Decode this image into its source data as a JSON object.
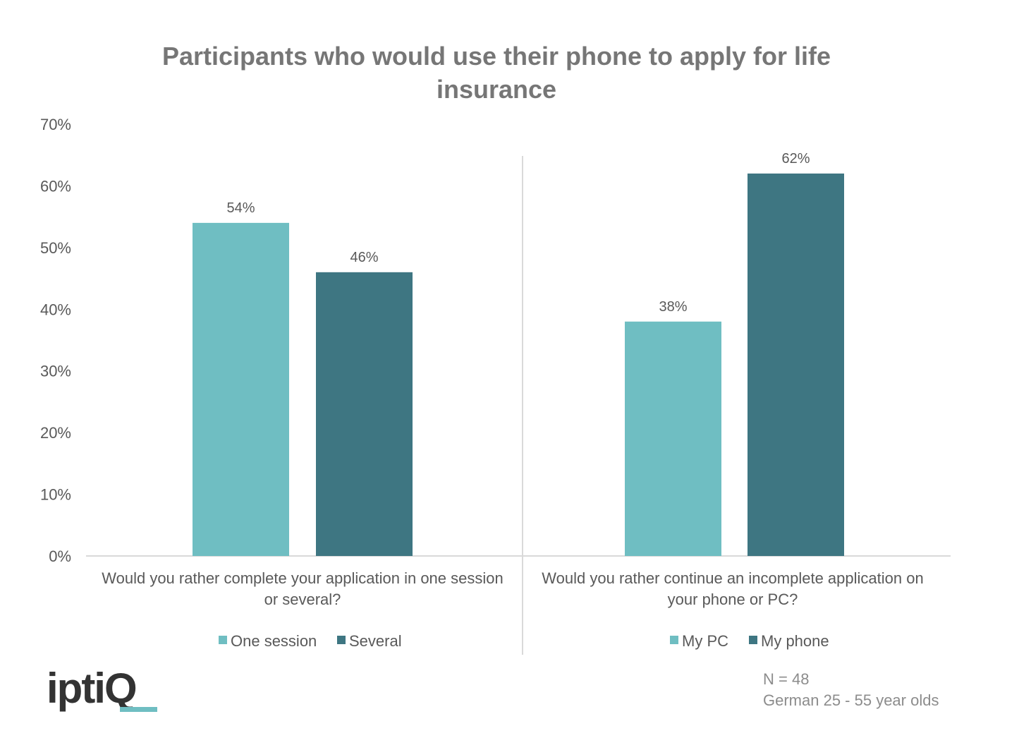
{
  "title": [
    "Participants who would use their phone to apply for life",
    "insurance"
  ],
  "colors": {
    "light": "#6fbec2",
    "dark": "#3e7682",
    "axis": "#d9d9d9",
    "logo_bar": "#6fbec2"
  },
  "chart_data": {
    "type": "bar",
    "ylim": [
      0,
      70
    ],
    "yticks": [
      "0%",
      "10%",
      "20%",
      "30%",
      "40%",
      "50%",
      "60%",
      "70%"
    ],
    "grid": false,
    "groups": [
      {
        "question": [
          "Would you rather complete your application in one session",
          "or several?"
        ],
        "series": [
          {
            "name": "One session",
            "value": 54,
            "label": "54%",
            "color": "#6fbec2"
          },
          {
            "name": "Several",
            "value": 46,
            "label": "46%",
            "color": "#3e7682"
          }
        ]
      },
      {
        "question": [
          "Would you rather continue an incomplete application on",
          "your phone or PC?"
        ],
        "series": [
          {
            "name": "My PC",
            "value": 38,
            "label": "38%",
            "color": "#6fbec2"
          },
          {
            "name": "My phone",
            "value": 62,
            "label": "62%",
            "color": "#3e7682"
          }
        ]
      }
    ]
  },
  "note": {
    "sample": "N = 48",
    "population": "German 25 - 55 year olds"
  },
  "logo": {
    "text": "iptiQ"
  }
}
